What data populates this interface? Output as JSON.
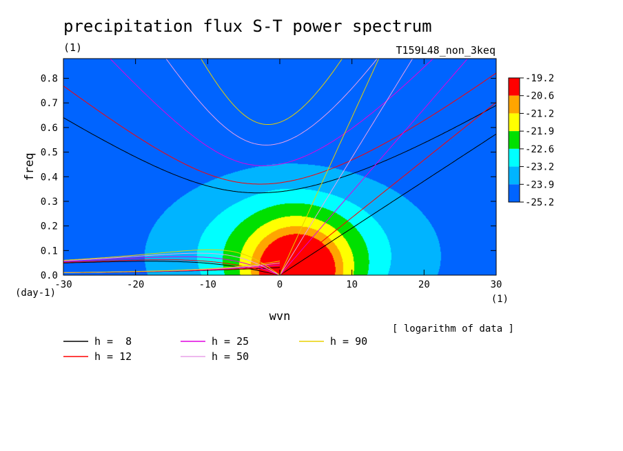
{
  "chart_data": {
    "type": "contour",
    "title": "precipitation flux S-T power spectrum",
    "subtitle_left": "(1)",
    "subtitle_right": "T159L48_non_3keq",
    "xlabel": "wvn",
    "ylabel": "freq",
    "x_unit": "(1)",
    "y_unit": "(day-1)",
    "xlim": [
      -30,
      30
    ],
    "ylim": [
      0,
      0.88
    ],
    "x_ticks": [
      -30,
      -20,
      -10,
      0,
      10,
      20,
      30
    ],
    "x_tick_labels": [
      "-30",
      "-20",
      "-10",
      "0",
      "10",
      "20",
      "30"
    ],
    "y_ticks": [
      0,
      0.1,
      0.2,
      0.3,
      0.4,
      0.5,
      0.6,
      0.7,
      0.8
    ],
    "y_tick_labels": [
      "0.0",
      "0.1",
      "0.2",
      "0.3",
      "0.4",
      "0.5",
      "0.6",
      "0.7",
      "0.8"
    ],
    "colorbar": {
      "labels": [
        "-19.2",
        "-20.6",
        "-21.2",
        "-21.9",
        "-22.6",
        "-23.2",
        "-23.9",
        "-25.2"
      ],
      "colors": [
        "#ff0000",
        "#ffa500",
        "#ffff00",
        "#00e000",
        "#00ffff",
        "#00b4ff",
        "#0064ff"
      ],
      "note": "[ logarithm of data ]"
    },
    "contour_levels": [
      -25.2,
      -23.9,
      -23.2,
      -22.6,
      -21.9,
      -21.2,
      -20.6
    ],
    "dispersion_curves": {
      "legend": [
        {
          "label": "h =  8",
          "h": 8,
          "color": "#000000"
        },
        {
          "label": "h = 12",
          "h": 12,
          "color": "#ff0000"
        },
        {
          "label": "h = 25",
          "h": 25,
          "color": "#e000e0"
        },
        {
          "label": "h = 50",
          "h": 50,
          "color": "#e8a0e8"
        },
        {
          "label": "h = 90",
          "h": 90,
          "color": "#e8d000"
        }
      ]
    }
  }
}
